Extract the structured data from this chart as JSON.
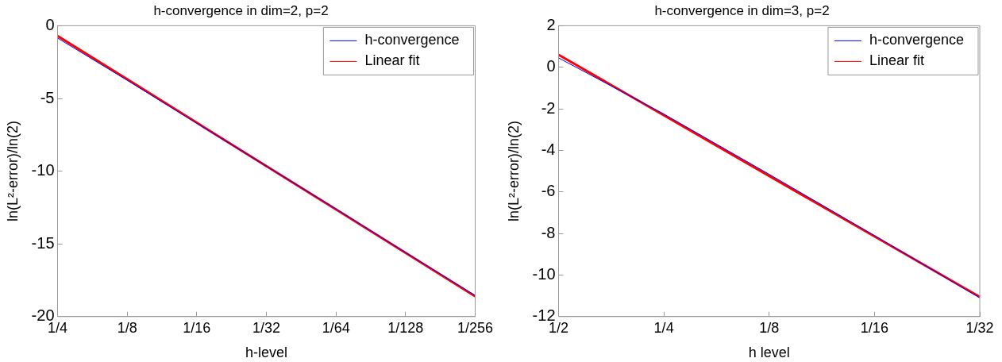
{
  "chart_data": [
    {
      "type": "line",
      "title": "h-convergence in dim=2, p=2",
      "xlabel": "h-level",
      "ylabel": "ln(L²-error)/ln(2)",
      "categories": [
        "1/4",
        "1/8",
        "1/16",
        "1/32",
        "1/64",
        "1/128",
        "1/256"
      ],
      "series": [
        {
          "name": "h-convergence",
          "color": "#0000ff",
          "values": [
            -0.85,
            -3.75,
            -6.7,
            -9.65,
            -12.6,
            -15.6,
            -18.55
          ]
        },
        {
          "name": "Linear fit",
          "color": "#ff0000",
          "values": [
            -0.7,
            -3.68,
            -6.67,
            -9.65,
            -12.63,
            -15.62,
            -18.6
          ]
        }
      ],
      "ylim": [
        -20,
        0
      ],
      "yticks": [
        -20,
        -15,
        -10,
        -5,
        0
      ],
      "grid": false,
      "legend": "top right",
      "marker": "none",
      "line_style": "solid"
    },
    {
      "type": "line",
      "title": "h-convergence in dim=3, p=2",
      "xlabel": "h level",
      "ylabel": "ln(L²-error)/ln(2)",
      "categories": [
        "1/2",
        "1/4",
        "1/8",
        "1/16",
        "1/32"
      ],
      "series": [
        {
          "name": "h-convergence",
          "color": "#0000ff",
          "values": [
            0.45,
            -2.25,
            -5.15,
            -8.1,
            -11.1
          ]
        },
        {
          "name": "Linear fit",
          "color": "#ff0000",
          "values": [
            0.6,
            -2.31,
            -5.23,
            -8.14,
            -11.05
          ]
        }
      ],
      "ylim": [
        -12,
        2
      ],
      "yticks": [
        -12,
        -10,
        -8,
        -6,
        -4,
        -2,
        0,
        2
      ],
      "grid": false,
      "legend": "top right",
      "marker": "none",
      "line_style": "solid"
    }
  ]
}
